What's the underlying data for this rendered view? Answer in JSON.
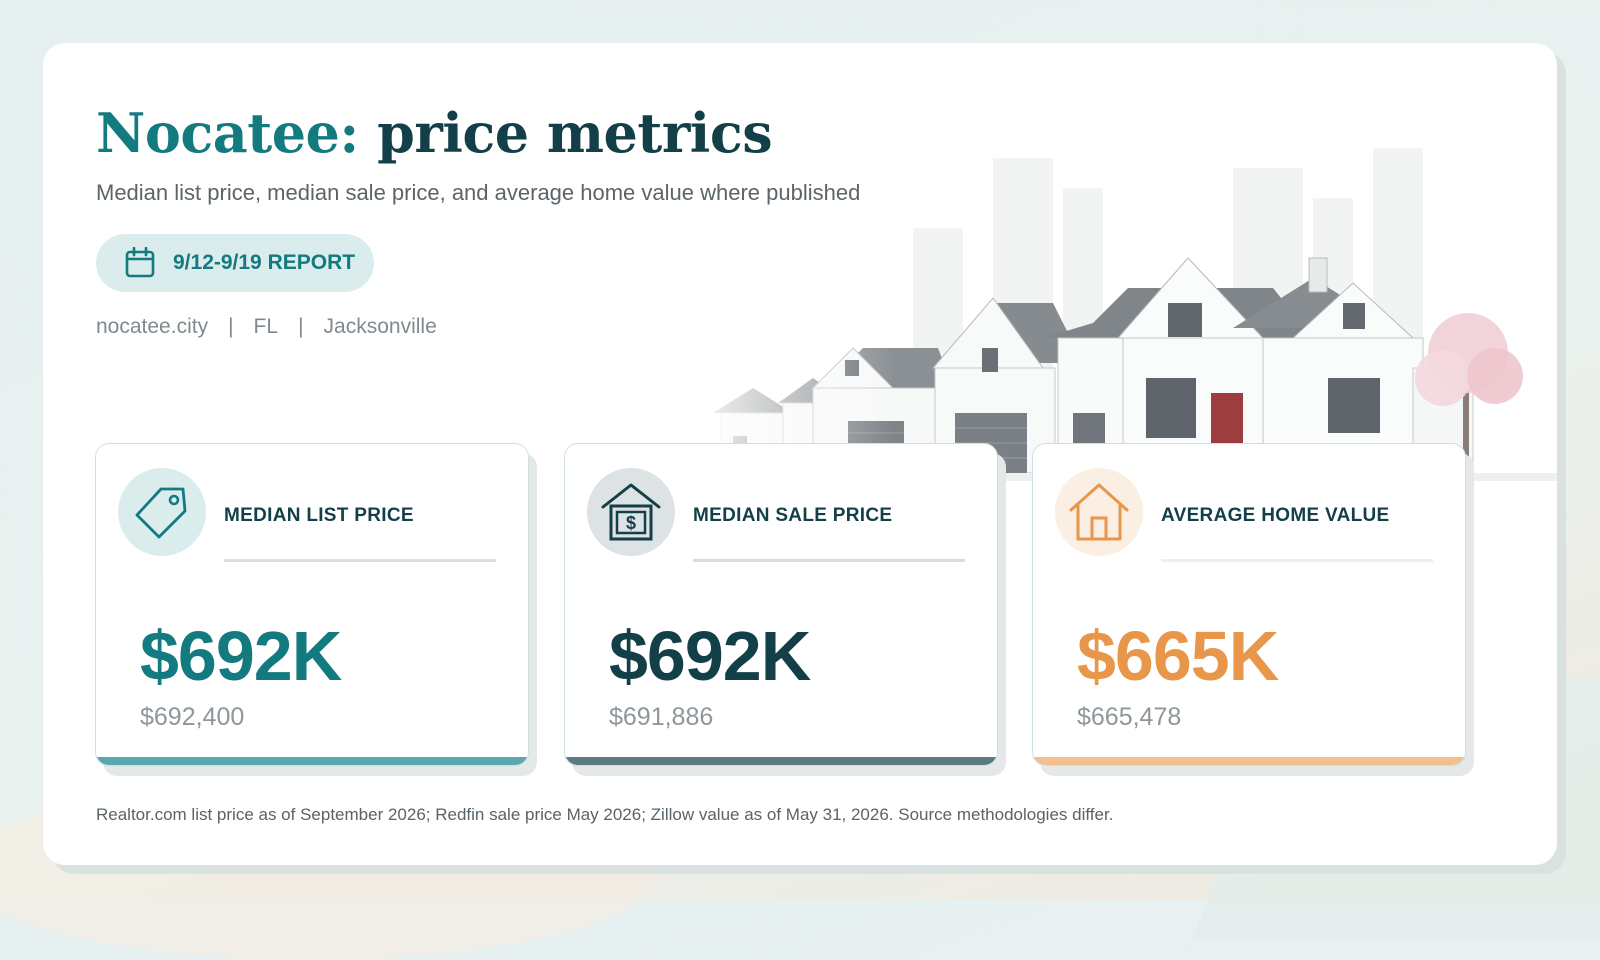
{
  "header": {
    "title_accent": "Nocatee:",
    "title_rest": "price metrics",
    "subtitle": "Median list price, median sale price, and average home value where published"
  },
  "report_badge": {
    "icon": "calendar-icon",
    "label": "9/12-9/19 REPORT"
  },
  "meta": {
    "website": "nocatee.city",
    "separator": "|",
    "state": "FL",
    "metro": "Jacksonville"
  },
  "metrics": [
    {
      "label": "MEDIAN LIST PRICE",
      "value": "$692K",
      "exact": "$692,400",
      "icon": "price-tag-icon",
      "accent": "#137a80",
      "bar_color": "#5aa8ad",
      "icon_bg": "#dbeced",
      "rule_color": "#d7e1e1"
    },
    {
      "label": "MEDIAN SALE PRICE",
      "value": "$692K",
      "exact": "$691,886",
      "icon": "house-dollar-icon",
      "accent": "#133f48",
      "bar_color": "#5b7a82",
      "icon_bg": "#dde3e4",
      "rule_color": "#d7dcdd"
    },
    {
      "label": "AVERAGE HOME VALUE",
      "value": "$665K",
      "exact": "$665,478",
      "icon": "house-icon",
      "accent": "#e8964a",
      "bar_color": "#f2c08c",
      "icon_bg": "#fbeee2",
      "rule_color": "#f6ece3"
    }
  ],
  "footnote": "Realtor.com list price as of September 2026; Redfin sale price May 2026; Zillow value as of May 31, 2026. Source methodologies differ."
}
